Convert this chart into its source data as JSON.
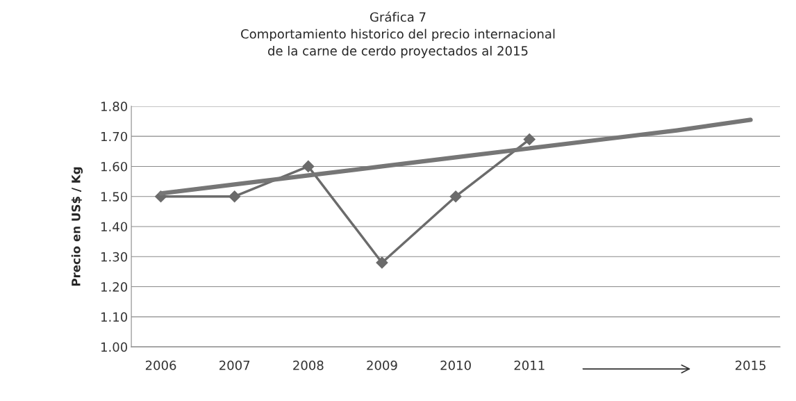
{
  "chart_data": {
    "type": "line",
    "title": "Gráfica 7\nComportamiento historico del precio internacional\nde la carne de cerdo proyectados al 2015",
    "ylabel": "Precio en US$ / Kg",
    "categories": [
      "2006",
      "2007",
      "2008",
      "2009",
      "2010",
      "2011",
      null,
      null,
      "2015"
    ],
    "series": [
      {
        "color": "#6b6b6b",
        "values": [
          1.5,
          1.5,
          1.6,
          1.28,
          1.5,
          1.69,
          null,
          null,
          null
        ],
        "marker": "diamond"
      },
      {
        "color": "#767676",
        "values": [
          1.51,
          1.54,
          1.57,
          1.6,
          1.63,
          1.66,
          1.69,
          1.72,
          1.755
        ],
        "marker": "none"
      }
    ],
    "ylim": [
      1.0,
      1.8
    ],
    "yticks": [
      {
        "value": 1.0,
        "label": "1.00"
      },
      {
        "value": 1.1,
        "label": "1.10"
      },
      {
        "value": 1.2,
        "label": "1.20"
      },
      {
        "value": 1.3,
        "label": "1.30"
      },
      {
        "value": 1.4,
        "label": "1.40"
      },
      {
        "value": 1.5,
        "label": "1.50"
      },
      {
        "value": 1.6,
        "label": "1.60"
      },
      {
        "value": 1.7,
        "label": "1.70"
      },
      {
        "value": 1.8,
        "label": "1.80"
      }
    ],
    "grid": "y",
    "legend": false
  }
}
